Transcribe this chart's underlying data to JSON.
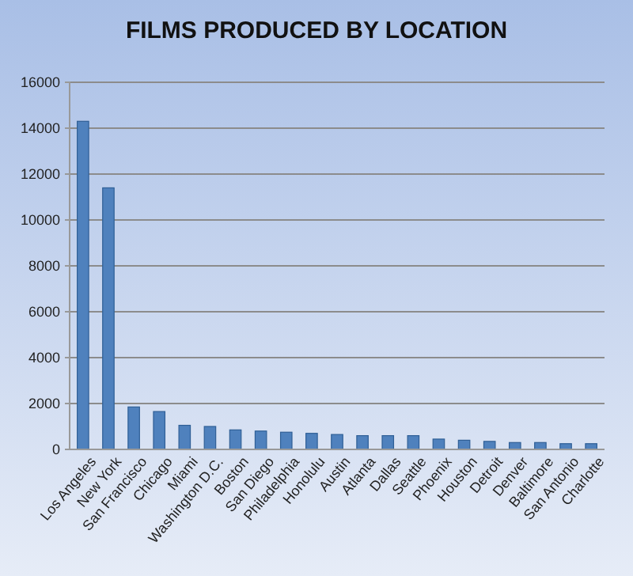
{
  "chart_data": {
    "type": "bar",
    "title": "FILMS PRODUCED BY LOCATION",
    "categories": [
      "Los Angeles",
      "New York",
      "San Francisco",
      "Chicago",
      "Miami",
      "Washington D.C.",
      "Boston",
      "San Diego",
      "Philadelphia",
      "Honolulu",
      "Austin",
      "Atlanta",
      "Dallas",
      "Seattle",
      "Phoenix",
      "Houston",
      "Detroit",
      "Denver",
      "Baltimore",
      "San Antonio",
      "Charlotte"
    ],
    "values": [
      14300,
      11400,
      1850,
      1650,
      1050,
      1000,
      850,
      800,
      750,
      700,
      650,
      600,
      600,
      600,
      450,
      400,
      350,
      300,
      300,
      250,
      250
    ],
    "color": "#4f81bd",
    "ylim": [
      0,
      16000
    ],
    "yticks": [
      0,
      2000,
      4000,
      6000,
      8000,
      10000,
      12000,
      14000,
      16000
    ],
    "grid": "y"
  }
}
